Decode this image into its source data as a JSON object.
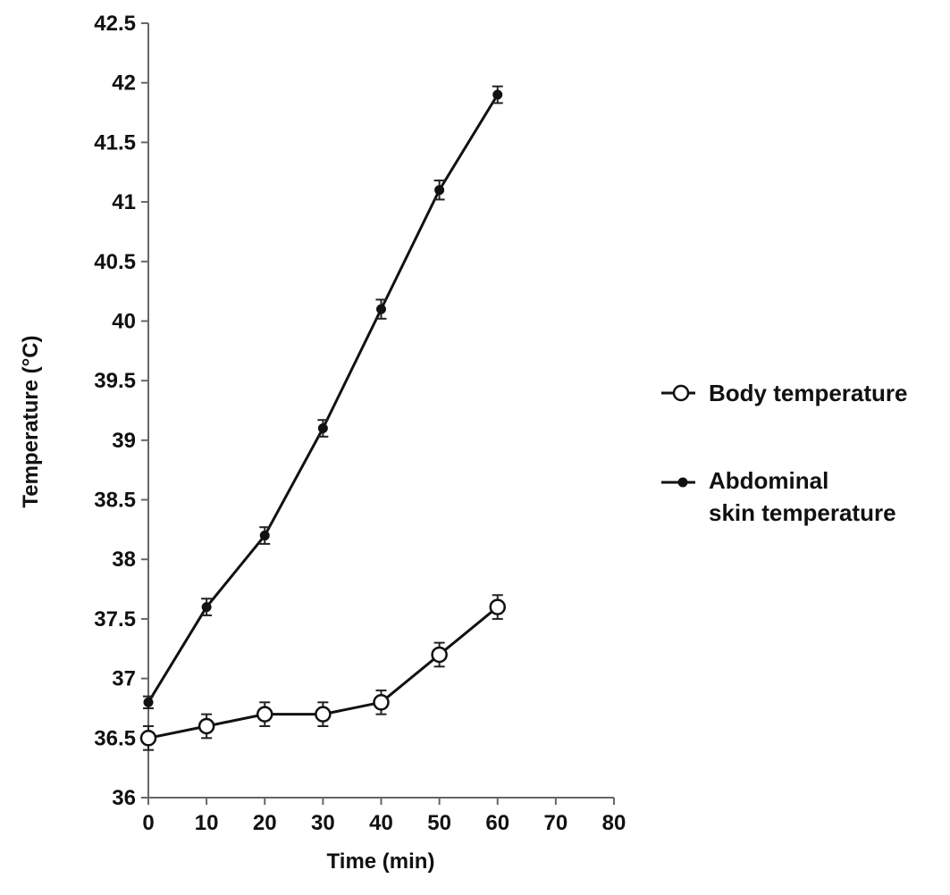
{
  "chart_data": {
    "type": "line",
    "xlabel": "Time (min)",
    "ylabel": "Temperature (°C)",
    "xlim": [
      0,
      80
    ],
    "ylim": [
      36,
      42.5
    ],
    "xticks": [
      "0",
      "10",
      "20",
      "30",
      "40",
      "50",
      "60",
      "70",
      "80"
    ],
    "yticks": [
      "36",
      "36.5",
      "37",
      "37.5",
      "38",
      "38.5",
      "39",
      "39.5",
      "40",
      "40.5",
      "41",
      "41.5",
      "42",
      "42.5"
    ],
    "grid": false,
    "legend_position": "right",
    "series": [
      {
        "name": "Body temperature",
        "marker": "open-circle",
        "color": "#111111",
        "x": [
          0,
          10,
          20,
          30,
          40,
          50,
          60
        ],
        "y": [
          36.5,
          36.6,
          36.7,
          36.7,
          36.8,
          37.2,
          37.6
        ],
        "error": [
          0.1,
          0.1,
          0.1,
          0.1,
          0.1,
          0.1,
          0.1
        ]
      },
      {
        "name": "Abdominal skin temperature",
        "legend_lines": [
          "Abdominal",
          "skin temperature"
        ],
        "marker": "filled-circle",
        "color": "#111111",
        "x": [
          0,
          10,
          20,
          30,
          40,
          50,
          60
        ],
        "y": [
          36.8,
          37.6,
          38.2,
          39.1,
          40.1,
          41.1,
          41.9
        ],
        "error": [
          0.05,
          0.07,
          0.07,
          0.07,
          0.08,
          0.08,
          0.07
        ]
      }
    ]
  }
}
